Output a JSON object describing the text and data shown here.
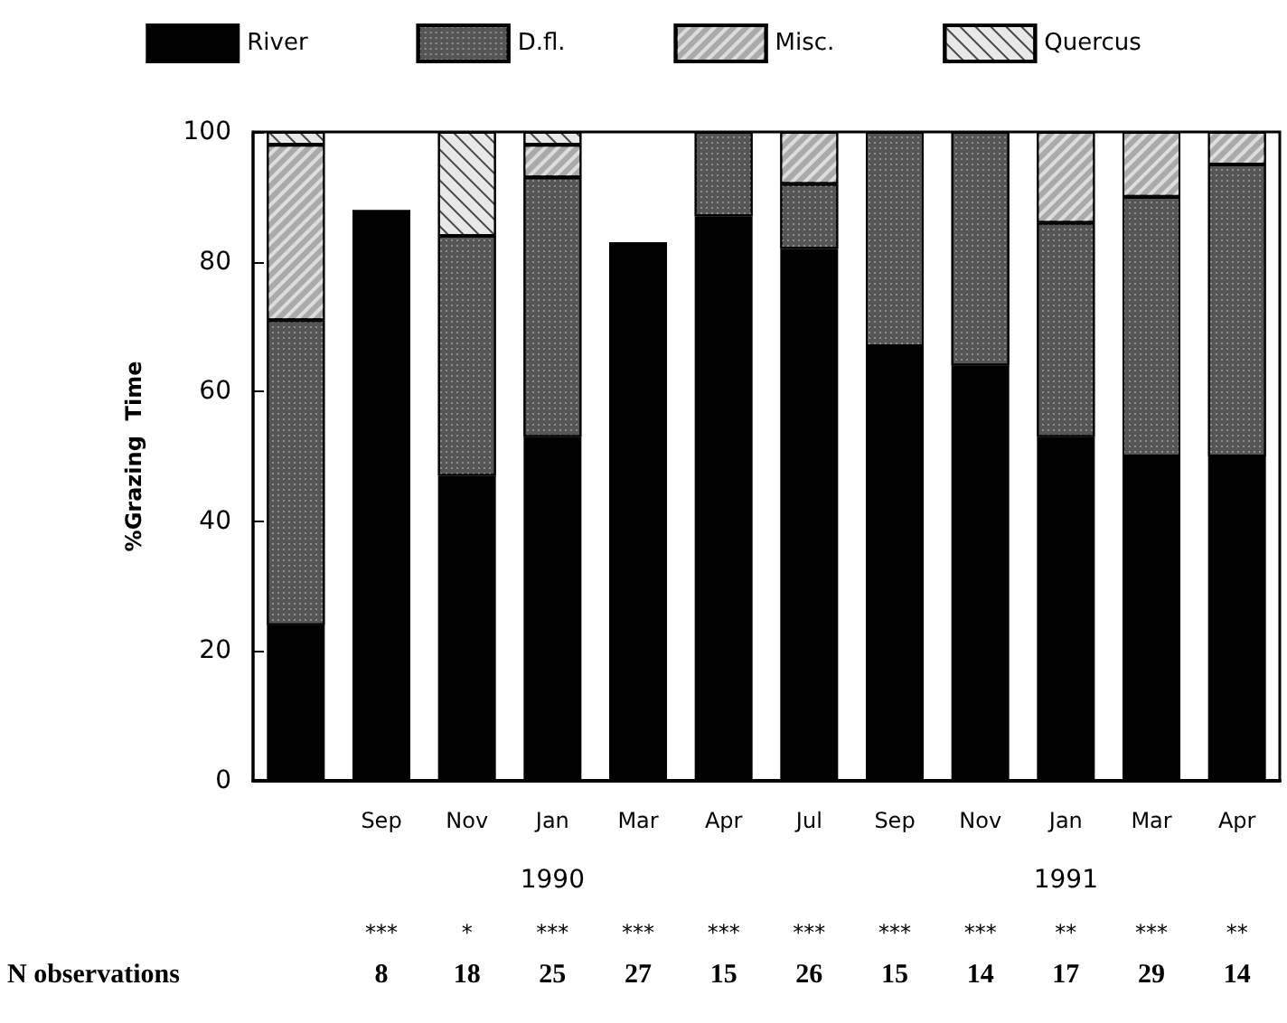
{
  "chart_data": {
    "type": "bar",
    "stacked": true,
    "ylabel": "%Grazing  Time",
    "categories": [
      null,
      "Sep",
      "Nov",
      "Jan",
      "Mar",
      "Apr",
      "Jul",
      "Sep",
      "Nov",
      "Jan",
      "Mar",
      "Apr"
    ],
    "series": [
      {
        "name": "River",
        "color": "#000000",
        "values": [
          24,
          88,
          47,
          53,
          83,
          87,
          82,
          67,
          64,
          53,
          50,
          50
        ]
      },
      {
        "name": "D.fl.",
        "color": "#555555",
        "values": [
          47,
          null,
          37,
          40,
          null,
          13,
          10,
          33,
          36,
          33,
          40,
          45
        ]
      },
      {
        "name": "Misc.",
        "color": "#aaaaaa",
        "values": [
          27,
          null,
          null,
          5,
          null,
          null,
          8,
          null,
          null,
          14,
          10,
          5
        ]
      },
      {
        "name": "Quercus",
        "color": "#e8e8e8",
        "values": [
          2,
          null,
          16,
          2,
          null,
          null,
          null,
          null,
          null,
          null,
          null,
          null
        ]
      }
    ],
    "ylim": [
      0,
      100
    ],
    "yticks": [
      0,
      20,
      40,
      60,
      80,
      100
    ],
    "grid": false,
    "legend": "top",
    "annotations": [
      "1990",
      "1991",
      "***",
      "*",
      "***",
      "***",
      "***",
      "***",
      "***",
      "***",
      "**",
      "***",
      "**",
      "N observations",
      "8",
      "18",
      "25",
      "27",
      "15",
      "26",
      "15",
      "14",
      "17",
      "29",
      "14"
    ]
  }
}
